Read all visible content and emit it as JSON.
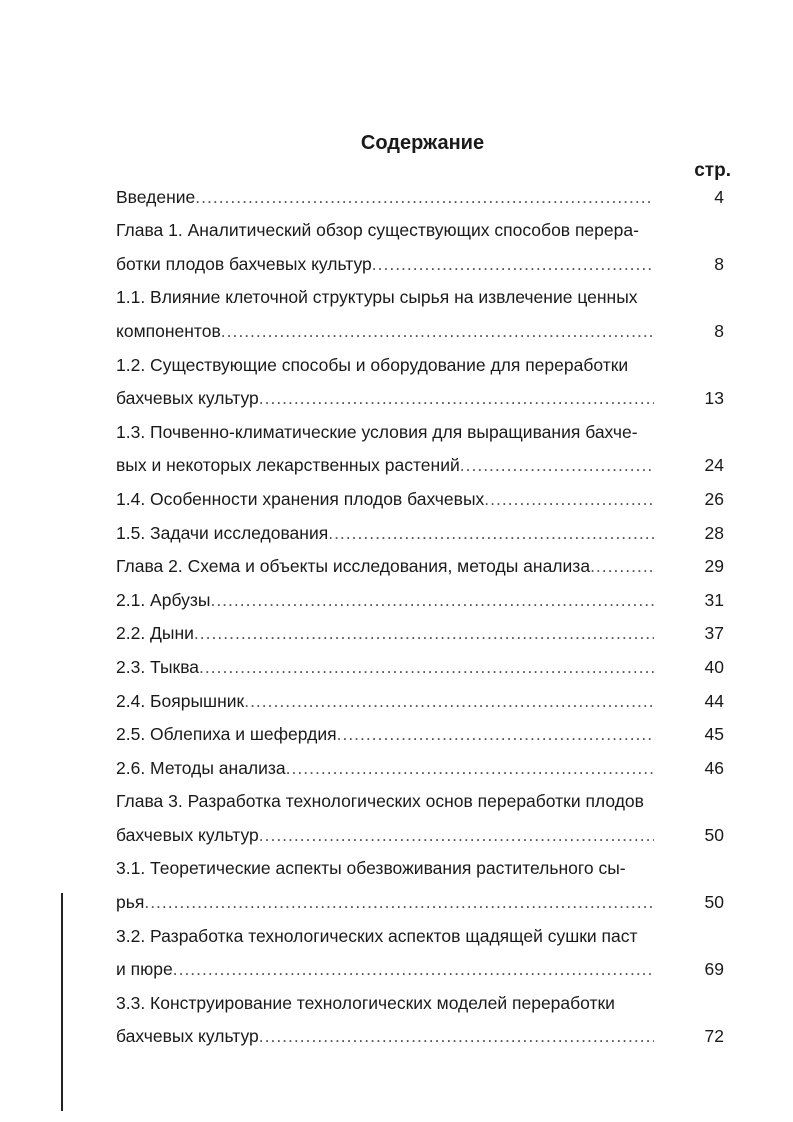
{
  "title": "Содержание",
  "page_column_header": "стр.",
  "entries": [
    {
      "lines": [
        "Введение"
      ],
      "page": "4"
    },
    {
      "lines": [
        "Глава 1. Аналитический обзор существующих способов перера-",
        "ботки плодов бахчевых культур"
      ],
      "page": "8"
    },
    {
      "lines": [
        "1.1. Влияние клеточной структуры сырья на извлечение ценных",
        "компонентов"
      ],
      "page": "8"
    },
    {
      "lines": [
        "1.2. Существующие способы и оборудование для переработки",
        "бахчевых культур"
      ],
      "page": "13"
    },
    {
      "lines": [
        "1.3. Почвенно-климатические условия для выращивания бахче-",
        "вых и некоторых лекарственных растений"
      ],
      "page": "24"
    },
    {
      "lines": [
        "1.4. Особенности хранения плодов бахчевых"
      ],
      "page": "26"
    },
    {
      "lines": [
        "1.5. Задачи исследования"
      ],
      "page": "28"
    },
    {
      "lines": [
        "Глава 2. Схема и объекты исследования, методы анализа"
      ],
      "page": "29"
    },
    {
      "lines": [
        "2.1. Арбузы"
      ],
      "page": "31"
    },
    {
      "lines": [
        "2.2. Дыни"
      ],
      "page": "37"
    },
    {
      "lines": [
        "2.3. Тыква"
      ],
      "page": "40"
    },
    {
      "lines": [
        "2.4. Боярышник"
      ],
      "page": "44"
    },
    {
      "lines": [
        "2.5. Облепиха и шефердия"
      ],
      "page": "45"
    },
    {
      "lines": [
        "2.6. Методы анализа"
      ],
      "page": "46"
    },
    {
      "lines": [
        "Глава 3. Разработка технологических основ переработки плодов",
        "бахчевых культур"
      ],
      "page": "50"
    },
    {
      "lines": [
        "3.1. Теоретические аспекты обезвоживания растительного сы-",
        "рья"
      ],
      "page": "50"
    },
    {
      "lines": [
        "3.2. Разработка технологических аспектов щадящей сушки паст",
        "и пюре"
      ],
      "page": "69"
    },
    {
      "lines": [
        "3.3. Конструирование технологических моделей переработки",
        "бахчевых культур"
      ],
      "page": "72"
    }
  ]
}
